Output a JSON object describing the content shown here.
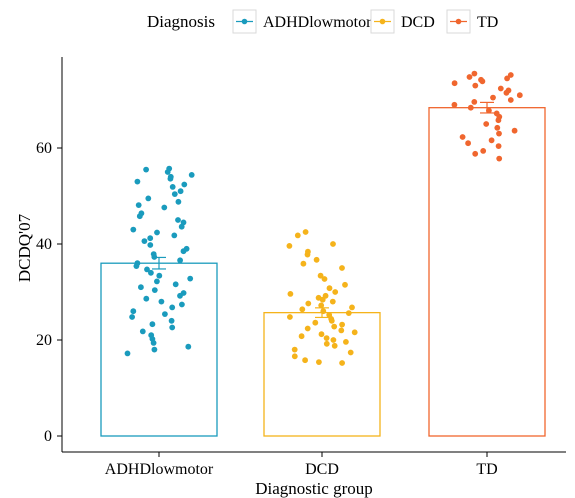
{
  "chart_data": {
    "type": "bar",
    "xlabel": "Diagnostic group",
    "ylabel": "DCDQ'07",
    "ylim": [
      0,
      78
    ],
    "yticks": [
      0,
      20,
      40,
      60
    ],
    "grid": false,
    "legend": {
      "title": "Diagnosis",
      "placement": "top",
      "entries": [
        "ADHDlowmotor",
        "DCD",
        "TD"
      ]
    },
    "categories": [
      "ADHDlowmotor",
      "DCD",
      "TD"
    ],
    "colors": [
      "#1a9bbd",
      "#f5b31b",
      "#f0662e"
    ],
    "values": [
      36.0,
      25.7,
      68.4
    ],
    "error": [
      1.2,
      1.0,
      1.1
    ],
    "points": [
      [
        55.7,
        55.5,
        55.0,
        54.4,
        54.0,
        53.6,
        53.0,
        52.4,
        51.9,
        51.0,
        50.4,
        49.5,
        48.8,
        48.1,
        47.6,
        46.4,
        45.8,
        45.0,
        44.5,
        43.6,
        43.0,
        42.4,
        41.8,
        41.2,
        40.6,
        39.8,
        39.0,
        38.5,
        37.9,
        37.3,
        36.6,
        36.0,
        35.4,
        34.7,
        34.0,
        33.4,
        32.8,
        32.2,
        31.6,
        31.0,
        30.4,
        29.8,
        29.2,
        28.6,
        28.0,
        27.4,
        26.8,
        26.0,
        25.4,
        24.8,
        24.0,
        23.3,
        22.6,
        21.8,
        21.0,
        20.2,
        19.4,
        18.6,
        18.0,
        17.2
      ],
      [
        42.5,
        41.8,
        40.0,
        39.6,
        38.4,
        37.8,
        36.7,
        35.9,
        35.0,
        33.4,
        32.7,
        31.5,
        30.8,
        30.0,
        29.6,
        29.2,
        28.8,
        28.4,
        28.0,
        27.6,
        27.2,
        26.8,
        26.4,
        26.0,
        25.6,
        25.2,
        24.8,
        24.4,
        24.0,
        23.6,
        23.2,
        22.8,
        22.4,
        22.0,
        21.6,
        21.2,
        20.8,
        20.4,
        20.0,
        19.6,
        19.2,
        18.8,
        18.0,
        17.4,
        16.6,
        15.8,
        15.4,
        15.2
      ],
      [
        75.5,
        75.2,
        74.8,
        74.5,
        74.2,
        73.9,
        73.5,
        73.0,
        72.4,
        72.0,
        71.5,
        71.0,
        70.5,
        70.0,
        69.6,
        69.0,
        68.4,
        67.8,
        67.2,
        66.5,
        65.8,
        65.0,
        64.2,
        63.6,
        63.0,
        62.3,
        61.6,
        61.0,
        60.4,
        59.4,
        58.8,
        57.8
      ]
    ]
  }
}
